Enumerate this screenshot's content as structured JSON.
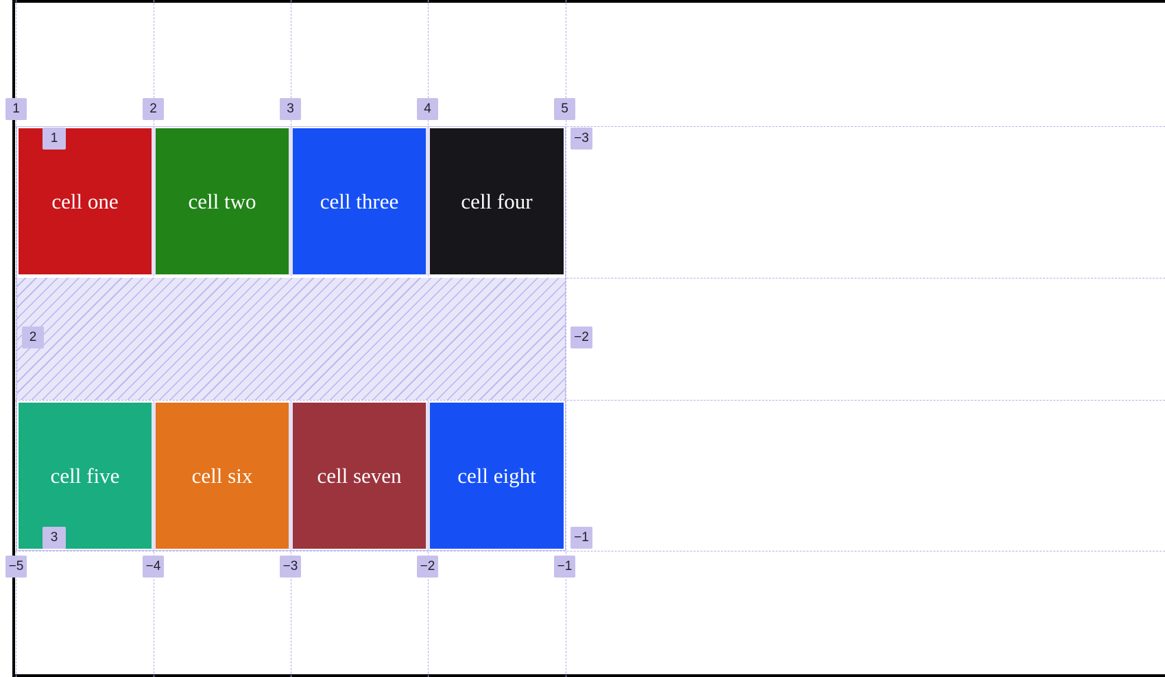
{
  "cells": [
    {
      "label": "cell one",
      "color": "#c8161b"
    },
    {
      "label": "cell two",
      "color": "#218318"
    },
    {
      "label": "cell three",
      "color": "#1650f5"
    },
    {
      "label": "cell four",
      "color": "#17161b"
    },
    {
      "label": "cell five",
      "color": "#1aad7f"
    },
    {
      "label": "cell six",
      "color": "#e3731c"
    },
    {
      "label": "cell seven",
      "color": "#9c343d"
    },
    {
      "label": "cell eight",
      "color": "#1650f5"
    }
  ],
  "overlay": {
    "column_lines_top": [
      "1",
      "2",
      "3",
      "4",
      "5"
    ],
    "column_lines_bottom": [
      "−5",
      "−4",
      "−3",
      "−2",
      "−1"
    ],
    "row_lines_left": [
      "1",
      "2",
      "3"
    ],
    "row_lines_right": [
      "−3",
      "−2",
      "−1"
    ],
    "line_color": "#b3acec",
    "badge_color": "#c7c0ec",
    "gap_fill_color": "#e8e6f9"
  }
}
